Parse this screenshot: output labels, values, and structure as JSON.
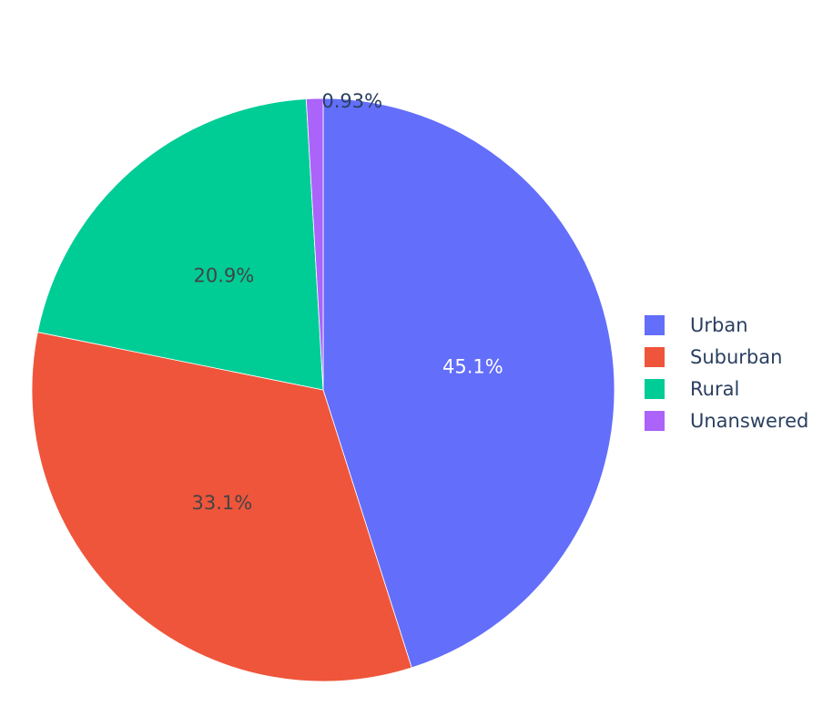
{
  "chart_data": {
    "type": "pie",
    "title": "",
    "labels": [
      "Urban",
      "Suburban",
      "Rural",
      "Unanswered"
    ],
    "values": [
      45.1,
      33.1,
      20.9,
      0.93
    ],
    "display_text": [
      "45.1%",
      "33.1%",
      "20.9%",
      "0.93%"
    ],
    "colors": [
      "#636efa",
      "#ef553b",
      "#00cc96",
      "#ab63fa"
    ],
    "label_colors": [
      "#ffffff",
      "#444444",
      "#444444",
      "#444444"
    ],
    "direction": "clockwise",
    "start_angle_deg": 0,
    "legend": {
      "placement": "right",
      "entries": [
        "Urban",
        "Suburban",
        "Rural",
        "Unanswered"
      ]
    }
  }
}
